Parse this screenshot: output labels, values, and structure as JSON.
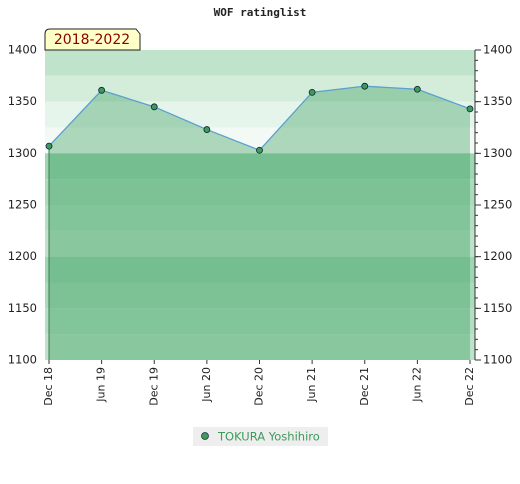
{
  "chart_data": {
    "type": "area",
    "title": "WOF ratinglist",
    "annotation": "2018-2022",
    "categories": [
      "Dec 18",
      "Jun 19",
      "Dec 19",
      "Jun 20",
      "Dec 20",
      "Jun 21",
      "Dec 21",
      "Jun 22",
      "Dec 22"
    ],
    "series": [
      {
        "name": "TOKURA Yoshihiro",
        "color": "#3c9a5c",
        "line_color": "#5aa0d0",
        "values": [
          1307,
          1361,
          1345,
          1323,
          1303,
          1359,
          1365,
          1362,
          1343
        ]
      }
    ],
    "ylim": [
      1100,
      1400
    ],
    "yticks": [
      1100,
      1150,
      1200,
      1250,
      1300,
      1350,
      1400
    ]
  }
}
